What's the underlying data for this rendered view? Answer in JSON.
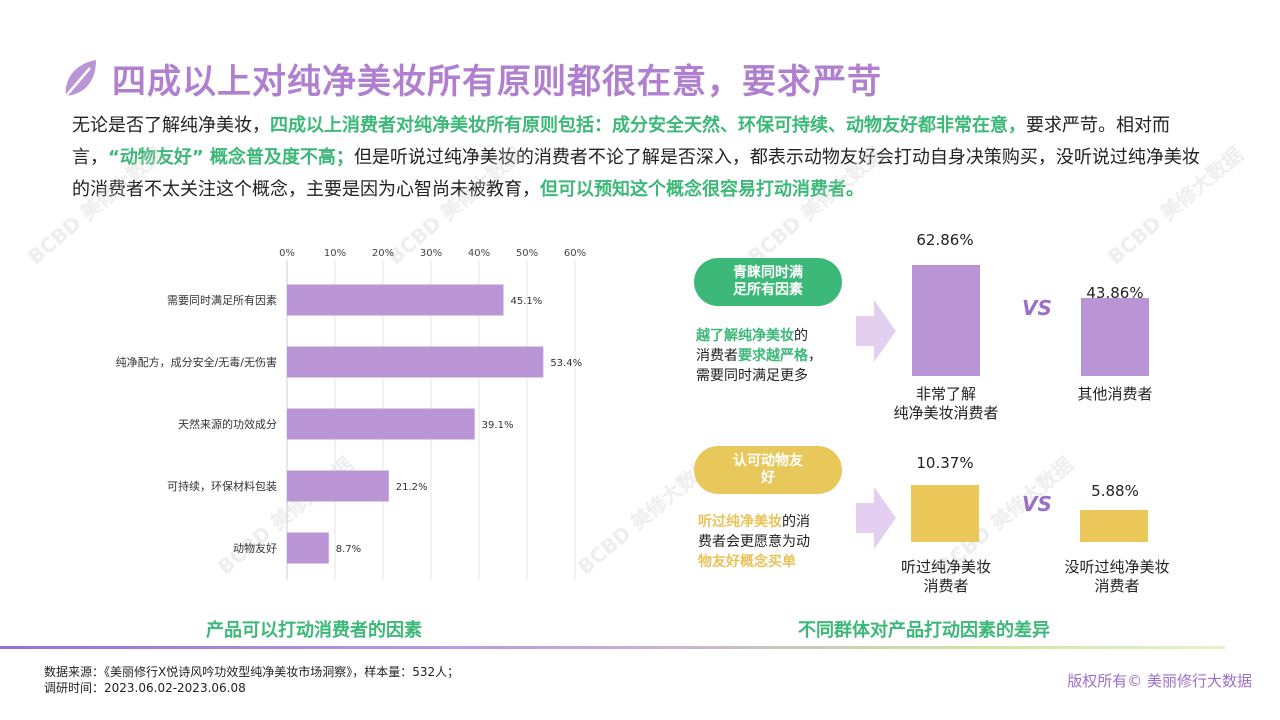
{
  "title": "四成以上对纯净美妆所有原则都很在意，要求严苛",
  "intro": {
    "p1": "无论是否了解纯净美妆，",
    "p2": "四成以上消费者对纯净美妆所有原则包括：成分安全天然、环保可持续、动物友好都非常在意，",
    "p3": "要求严苛。相对而言，",
    "p4": "“动物友好” 概念普及度不高；",
    "p5": "但是听说过纯净美妆的消费者不论了解是否深入，都表示动物友好会打动自身决策购买，没听说过纯净美妆的消费者不太关注这个概念，主要是因为心智尚未被教育，",
    "p6": "但可以预知这个概念很容易打动消费者。"
  },
  "watermark": {
    "logo": "BCBD",
    "text": "美修大数据"
  },
  "chart_data": {
    "type": "bar",
    "orientation": "horizontal",
    "categories": [
      "需要同时满足所有因素",
      "纯净配方，成分安全/无毒/无伤害",
      "天然来源的功效成分",
      "可持续，环保材料包装",
      "动物友好"
    ],
    "values": [
      45.1,
      53.4,
      39.1,
      21.2,
      8.7
    ],
    "value_labels": [
      "45.1%",
      "53.4%",
      "39.1%",
      "21.2%",
      "8.7%"
    ],
    "xlim": [
      0,
      60
    ],
    "xticks": [
      "0%",
      "10%",
      "20%",
      "30%",
      "40%",
      "50%",
      "60%"
    ],
    "title": "产品可以打动消费者的因素",
    "color": "#b995d5",
    "grid": true
  },
  "right": {
    "title": "不同群体对产品打动因素的差异",
    "vs": "VS",
    "top": {
      "pill": "青睐同时满足所有因素",
      "text_a": "越了解纯净美妆",
      "text_b": "的",
      "text_c": "消费者",
      "text_d": "要求越严格",
      "text_e": "，",
      "text_f": "需要同时满足更多",
      "bars": [
        {
          "value": 62.86,
          "label": "62.86%",
          "name_1": "非常了解",
          "name_2": "纯净美妆消费者"
        },
        {
          "value": 43.86,
          "label": "43.86%",
          "name_1": "其他消费者",
          "name_2": ""
        }
      ]
    },
    "bottom": {
      "pill": "认可动物友好",
      "text_a": "听过纯净美妆",
      "text_b": "的消",
      "text_c": "费者会更愿意为动",
      "text_d": "物友好概念买单",
      "bars": [
        {
          "value": 10.37,
          "label": "10.37%",
          "name_1": "听过纯净美妆",
          "name_2": "消费者"
        },
        {
          "value": 5.88,
          "label": "5.88%",
          "name_1": "没听过纯净美妆",
          "name_2": "消费者"
        }
      ]
    }
  },
  "source": {
    "line1": "数据来源：《美丽修行X悦诗风吟功效型纯净美妆市场洞察》，样本量：532人；",
    "line2": "调研时间：2023.06.02-2023.06.08"
  },
  "copyright": "版权所有© 美丽修行大数据",
  "colors": {
    "purple": "#b995d5",
    "green": "#3cb878",
    "yellow": "#ecc75a",
    "title": "#b07fcf"
  }
}
